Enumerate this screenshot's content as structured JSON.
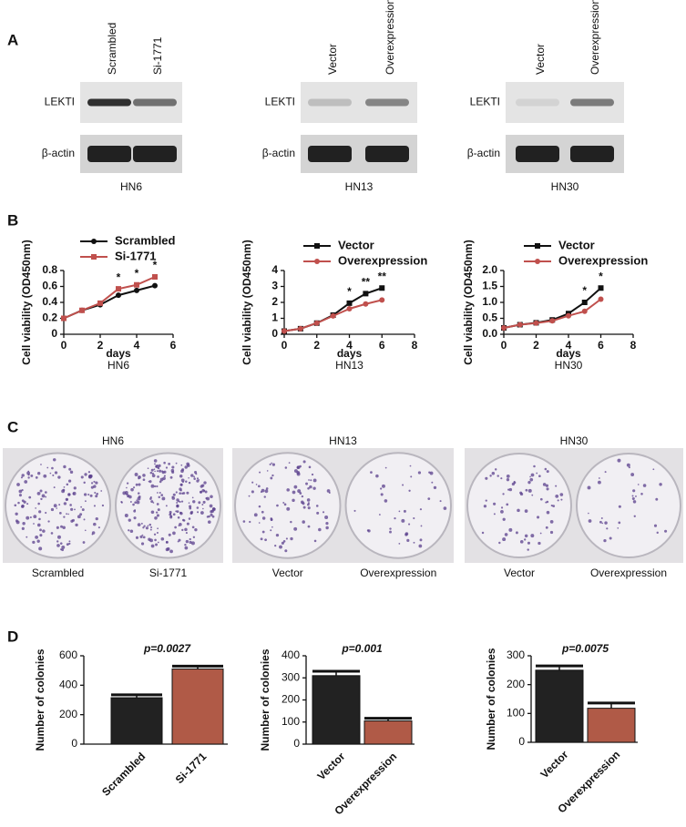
{
  "panels": {
    "A": {
      "label": "A",
      "blots": [
        {
          "lanes": [
            "Scrambled",
            "Si-1771"
          ],
          "rows": [
            "LEKTI",
            "β-actin"
          ],
          "cell_line": "HN6"
        },
        {
          "lanes": [
            "Vector",
            "Overexpression"
          ],
          "rows": [
            "LEKTI",
            "β-actin"
          ],
          "cell_line": "HN13"
        },
        {
          "lanes": [
            "Vector",
            "Overexpression"
          ],
          "rows": [
            "LEKTI",
            "β-actin"
          ],
          "cell_line": "HN30"
        }
      ]
    },
    "B": {
      "label": "B"
    },
    "C": {
      "label": "C",
      "plates": [
        {
          "title": "HN6",
          "labels": [
            "Scrambled",
            "Si-1771"
          ]
        },
        {
          "title": "HN13",
          "labels": [
            "Vector",
            "Overexpression"
          ]
        },
        {
          "title": "HN30",
          "labels": [
            "Vector",
            "Overexpression"
          ]
        }
      ]
    },
    "D": {
      "label": "D"
    }
  },
  "chart_data": [
    {
      "type": "line",
      "ylabel": "Cell viability (OD450nm)",
      "xlabel": "days",
      "subtitle": "HN6",
      "x": [
        0,
        1,
        2,
        3,
        4,
        5
      ],
      "series": [
        {
          "name": "Scrambled",
          "color": "#111111",
          "marker": "circle",
          "values": [
            0.2,
            0.3,
            0.37,
            0.49,
            0.55,
            0.61
          ]
        },
        {
          "name": "Si-1771",
          "color": "#c0504d",
          "marker": "square",
          "values": [
            0.2,
            0.3,
            0.39,
            0.57,
            0.62,
            0.72
          ]
        }
      ],
      "xlim": [
        0,
        6
      ],
      "xticks": [
        0,
        2,
        4,
        6
      ],
      "ylim": [
        0,
        0.8
      ],
      "yticks": [
        0,
        0.2,
        0.4,
        0.6,
        0.8
      ],
      "annotations": [
        {
          "x": 3,
          "text": "*"
        },
        {
          "x": 4,
          "text": "*"
        },
        {
          "x": 5,
          "text": "*"
        }
      ]
    },
    {
      "type": "line",
      "ylabel": "Cell viability (OD450nm)",
      "xlabel": "days",
      "subtitle": "HN13",
      "x": [
        0,
        1,
        2,
        3,
        4,
        5,
        6
      ],
      "series": [
        {
          "name": "Vector",
          "color": "#111111",
          "marker": "square",
          "values": [
            0.2,
            0.35,
            0.7,
            1.2,
            1.95,
            2.55,
            2.9
          ]
        },
        {
          "name": "Overexpression",
          "color": "#c0504d",
          "marker": "circle",
          "values": [
            0.2,
            0.35,
            0.7,
            1.15,
            1.6,
            1.9,
            2.15
          ]
        }
      ],
      "xlim": [
        0,
        8
      ],
      "xticks": [
        0,
        2,
        4,
        6,
        8
      ],
      "ylim": [
        0,
        4
      ],
      "yticks": [
        0,
        1,
        2,
        3,
        4
      ],
      "annotations": [
        {
          "x": 4,
          "text": "*"
        },
        {
          "x": 5,
          "text": "**"
        },
        {
          "x": 6,
          "text": "**"
        }
      ]
    },
    {
      "type": "line",
      "ylabel": "Cell viability (OD450nm)",
      "xlabel": "days",
      "subtitle": "HN30",
      "x": [
        0,
        1,
        2,
        3,
        4,
        5,
        6
      ],
      "series": [
        {
          "name": "Vector",
          "color": "#111111",
          "marker": "square",
          "values": [
            0.2,
            0.3,
            0.36,
            0.45,
            0.65,
            1.0,
            1.45
          ]
        },
        {
          "name": "Overexpression",
          "color": "#c0504d",
          "marker": "circle",
          "values": [
            0.2,
            0.3,
            0.35,
            0.42,
            0.58,
            0.72,
            1.1
          ]
        }
      ],
      "xlim": [
        0,
        8
      ],
      "xticks": [
        0,
        2,
        4,
        6,
        8
      ],
      "ylim": [
        0,
        2
      ],
      "yticks": [
        {
          "value": 0,
          "label": "0.0"
        },
        0.5,
        {
          "value": 1,
          "label": "1.0"
        },
        1.5,
        {
          "value": 2,
          "label": "2.0"
        }
      ],
      "annotations": [
        {
          "x": 5,
          "text": "*"
        },
        {
          "x": 6,
          "text": "*"
        }
      ]
    },
    {
      "type": "bar",
      "ylabel": "Number of colonies",
      "annotation": "p=0.0027",
      "categories": [
        "Scrambled",
        "Si-1771"
      ],
      "values": [
        315,
        510
      ],
      "errors": [
        20,
        20
      ],
      "colors": [
        "#222222",
        "#b05a47"
      ],
      "ylim": [
        0,
        600
      ],
      "yticks": [
        0,
        200,
        400,
        600
      ]
    },
    {
      "type": "bar",
      "ylabel": "Number of colonies",
      "annotation": "p=0.001",
      "categories": [
        "Vector",
        "Overexpression"
      ],
      "values": [
        310,
        105
      ],
      "errors": [
        20,
        12
      ],
      "colors": [
        "#222222",
        "#b05a47"
      ],
      "ylim": [
        0,
        400
      ],
      "yticks": [
        0,
        100,
        200,
        300,
        400
      ]
    },
    {
      "type": "bar",
      "ylabel": "Number of colonies",
      "annotation": "p=0.0075",
      "categories": [
        "Vector",
        "Overexpression"
      ],
      "values": [
        250,
        118
      ],
      "errors": [
        15,
        18
      ],
      "colors": [
        "#222222",
        "#b05a47"
      ],
      "ylim": [
        0,
        300
      ],
      "yticks": [
        0,
        100,
        200,
        300
      ]
    }
  ]
}
